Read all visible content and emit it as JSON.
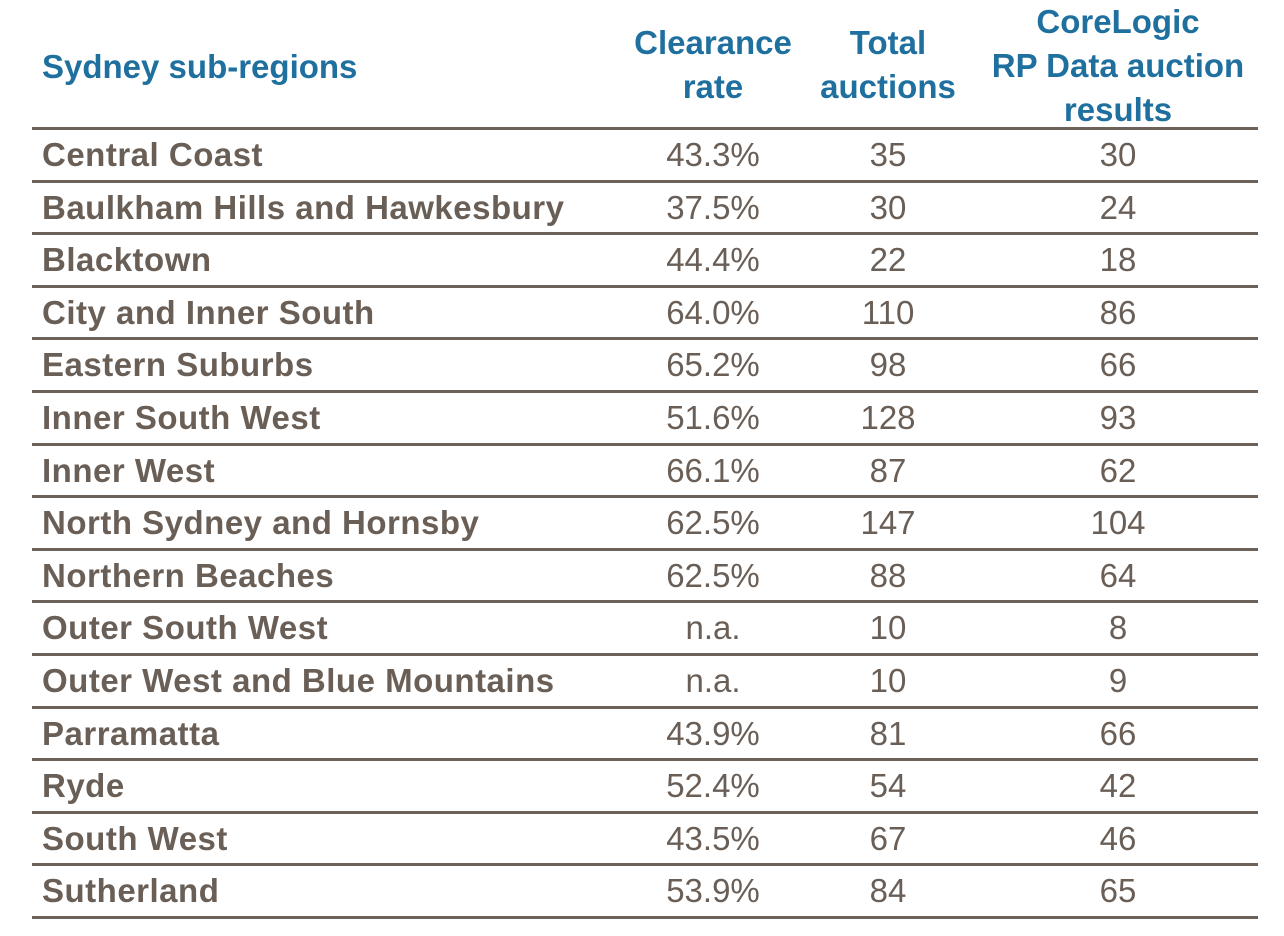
{
  "table": {
    "headers": {
      "region": "Sydney sub-regions",
      "clearance_line1": "Clearance",
      "clearance_line2": "rate",
      "total_line1": "Total",
      "total_line2": "auctions",
      "corelogic_line1": "CoreLogic",
      "corelogic_line2": "RP Data auction",
      "corelogic_line3": "results"
    },
    "rows": [
      {
        "region": "Central Coast",
        "clearance": "43.3%",
        "total": "35",
        "results": "30"
      },
      {
        "region": "Baulkham Hills and Hawkesbury",
        "clearance": "37.5%",
        "total": "30",
        "results": "24"
      },
      {
        "region": "Blacktown",
        "clearance": "44.4%",
        "total": "22",
        "results": "18"
      },
      {
        "region": "City and Inner South",
        "clearance": "64.0%",
        "total": "110",
        "results": "86"
      },
      {
        "region": "Eastern Suburbs",
        "clearance": "65.2%",
        "total": "98",
        "results": "66"
      },
      {
        "region": "Inner South West",
        "clearance": "51.6%",
        "total": "128",
        "results": "93"
      },
      {
        "region": "Inner West",
        "clearance": "66.1%",
        "total": "87",
        "results": "62"
      },
      {
        "region": "North Sydney and Hornsby",
        "clearance": "62.5%",
        "total": "147",
        "results": "104"
      },
      {
        "region": "Northern Beaches",
        "clearance": "62.5%",
        "total": "88",
        "results": "64"
      },
      {
        "region": "Outer South West",
        "clearance": "n.a.",
        "total": "10",
        "results": "8"
      },
      {
        "region": "Outer West and Blue Mountains",
        "clearance": "n.a.",
        "total": "10",
        "results": "9"
      },
      {
        "region": "Parramatta",
        "clearance": "43.9%",
        "total": "81",
        "results": "66"
      },
      {
        "region": "Ryde",
        "clearance": "52.4%",
        "total": "54",
        "results": "42"
      },
      {
        "region": "South West",
        "clearance": "43.5%",
        "total": "67",
        "results": "46"
      },
      {
        "region": "Sutherland",
        "clearance": "53.9%",
        "total": "84",
        "results": "65"
      }
    ]
  },
  "colors": {
    "header_text": "#1f6f9f",
    "body_text": "#6a5f57",
    "rule": "#6d625a"
  }
}
